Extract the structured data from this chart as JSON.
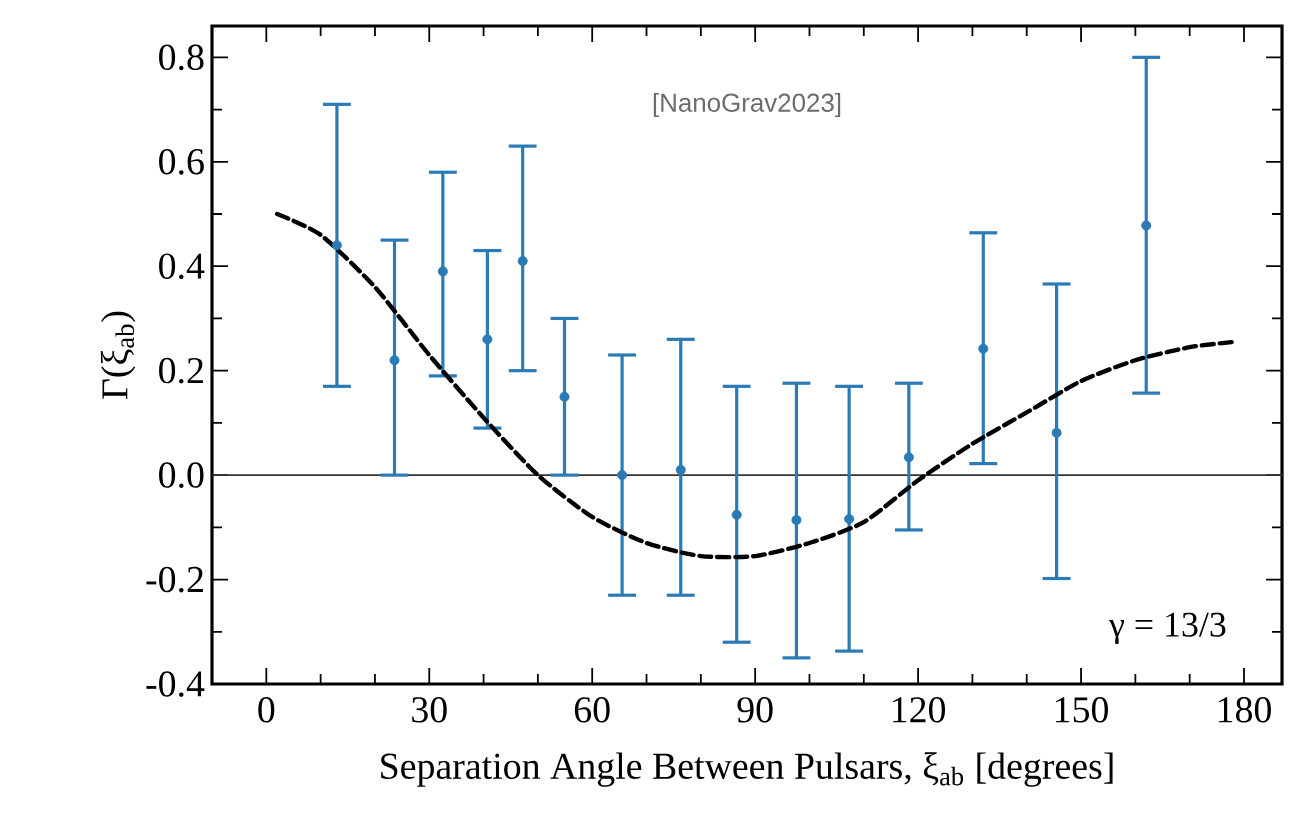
{
  "chart_data": {
    "type": "scatter",
    "xlabel": "Separation Angle Between Pulsars, ξ$_{ab}$ [degrees]",
    "ylabel": "Γ(ξ$_{ab}$)",
    "xlim": [
      -10,
      187
    ],
    "ylim": [
      -0.4,
      0.86
    ],
    "xticks": [
      0,
      30,
      60,
      90,
      120,
      150,
      180
    ],
    "yticks": [
      -0.4,
      -0.2,
      {
        "value": 0,
        "label": "0.0"
      },
      0.2,
      0.4,
      0.6,
      0.8
    ],
    "grid": false,
    "ref_lines": [
      {
        "axis": "y",
        "value": 0,
        "color": "#333333",
        "line_style": "solid"
      }
    ],
    "annotations": [
      "[NanoGrav2023]",
      "γ = 13/3"
    ],
    "series": [
      {
        "color": "#2a7ab5",
        "marker": "circle",
        "x": [
          13.0,
          23.6,
          32.5,
          40.7,
          47.2,
          54.9,
          65.5,
          76.3,
          86.6,
          97.6,
          107.3,
          118.3,
          132.0,
          145.5,
          162.0
        ],
        "values": [
          0.44,
          0.22,
          0.39,
          0.26,
          0.41,
          0.15,
          0.0,
          0.01,
          -0.076,
          -0.086,
          -0.084,
          0.034,
          0.242,
          0.081,
          0.478
        ],
        "errors": [
          [
            0.17,
            0.71
          ],
          [
            0.0,
            0.45
          ],
          [
            0.19,
            0.58
          ],
          [
            0.09,
            0.43
          ],
          [
            0.2,
            0.63
          ],
          [
            0.0,
            0.3
          ],
          [
            -0.23,
            0.23
          ],
          [
            -0.23,
            0.26
          ],
          [
            -0.32,
            0.17
          ],
          [
            -0.35,
            0.176
          ],
          [
            -0.337,
            0.17
          ],
          [
            -0.105,
            0.176
          ],
          [
            0.022,
            0.464
          ],
          [
            -0.198,
            0.366
          ],
          [
            0.157,
            0.8
          ]
        ]
      },
      {
        "type": "line",
        "color": "#000000",
        "line_style": "dashed",
        "marker": "none",
        "x": [
          2,
          10,
          20,
          30,
          40,
          50,
          60,
          70,
          80,
          90,
          100,
          110,
          120,
          130,
          140,
          150,
          160,
          170,
          178
        ],
        "values": [
          0.5,
          0.46,
          0.36,
          0.23,
          0.11,
          0.0,
          -0.08,
          -0.13,
          -0.155,
          -0.155,
          -0.13,
          -0.09,
          -0.01,
          0.06,
          0.12,
          0.18,
          0.22,
          0.245,
          0.255
        ]
      }
    ]
  }
}
